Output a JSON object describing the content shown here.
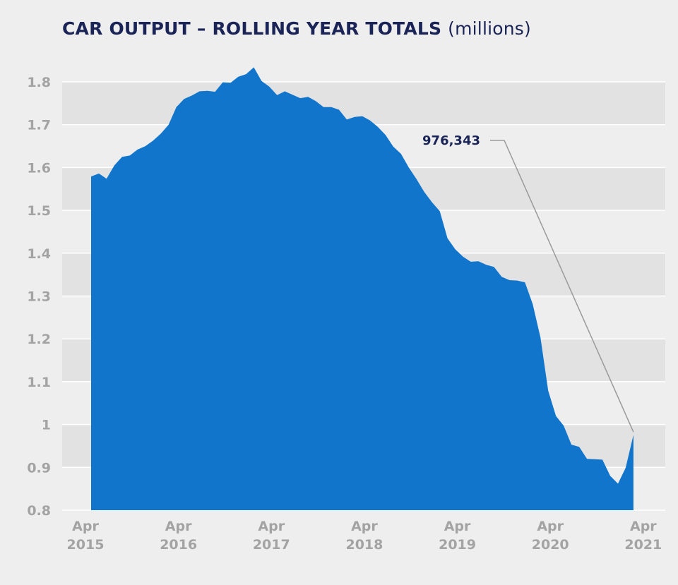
{
  "chart_data": {
    "type": "area",
    "title": "CAR OUTPUT – ROLLING YEAR TOTALS",
    "unit_label": "(millions)",
    "xlabel": "",
    "ylabel": "",
    "ylim": [
      0.8,
      1.85
    ],
    "yticks": [
      0.8,
      0.9,
      1,
      1.1,
      1.2,
      1.3,
      1.4,
      1.5,
      1.6,
      1.7,
      1.8
    ],
    "ytick_labels": [
      "0.8",
      "0.9",
      "1",
      "1.1",
      "1.2",
      "1.3",
      "1.4",
      "1.5",
      "1.6",
      "1.7",
      "1.8"
    ],
    "xticks": [
      {
        "month_index": 0,
        "label_top": "Apr",
        "label_bottom": "2015"
      },
      {
        "month_index": 12,
        "label_top": "Apr",
        "label_bottom": "2016"
      },
      {
        "month_index": 24,
        "label_top": "Apr",
        "label_bottom": "2017"
      },
      {
        "month_index": 36,
        "label_top": "Apr",
        "label_bottom": "2018"
      },
      {
        "month_index": 48,
        "label_top": "Apr",
        "label_bottom": "2019"
      },
      {
        "month_index": 60,
        "label_top": "Apr",
        "label_bottom": "2020"
      },
      {
        "month_index": 72,
        "label_top": "Apr",
        "label_bottom": "2021"
      }
    ],
    "x_range": [
      0,
      73
    ],
    "series": [
      {
        "name": "Car output (rolling year total, millions)",
        "color": "#1275cc",
        "values": [
          1.579,
          1.586,
          1.574,
          1.605,
          1.625,
          1.628,
          1.642,
          1.65,
          1.663,
          1.679,
          1.7,
          1.741,
          1.76,
          1.768,
          1.778,
          1.779,
          1.777,
          1.799,
          1.798,
          1.812,
          1.818,
          1.834,
          1.802,
          1.789,
          1.769,
          1.778,
          1.77,
          1.762,
          1.765,
          1.755,
          1.741,
          1.741,
          1.735,
          1.712,
          1.718,
          1.72,
          1.71,
          1.695,
          1.676,
          1.649,
          1.632,
          1.6,
          1.573,
          1.543,
          1.519,
          1.498,
          1.435,
          1.409,
          1.392,
          1.38,
          1.381,
          1.373,
          1.368,
          1.345,
          1.337,
          1.336,
          1.332,
          1.281,
          1.203,
          1.079,
          1.02,
          0.997,
          0.953,
          0.948,
          0.92,
          0.919,
          0.918,
          0.88,
          0.862,
          0.899,
          0.976
        ]
      }
    ],
    "annotations": [
      {
        "text": "976,343",
        "points_to_index": 70
      }
    ]
  }
}
